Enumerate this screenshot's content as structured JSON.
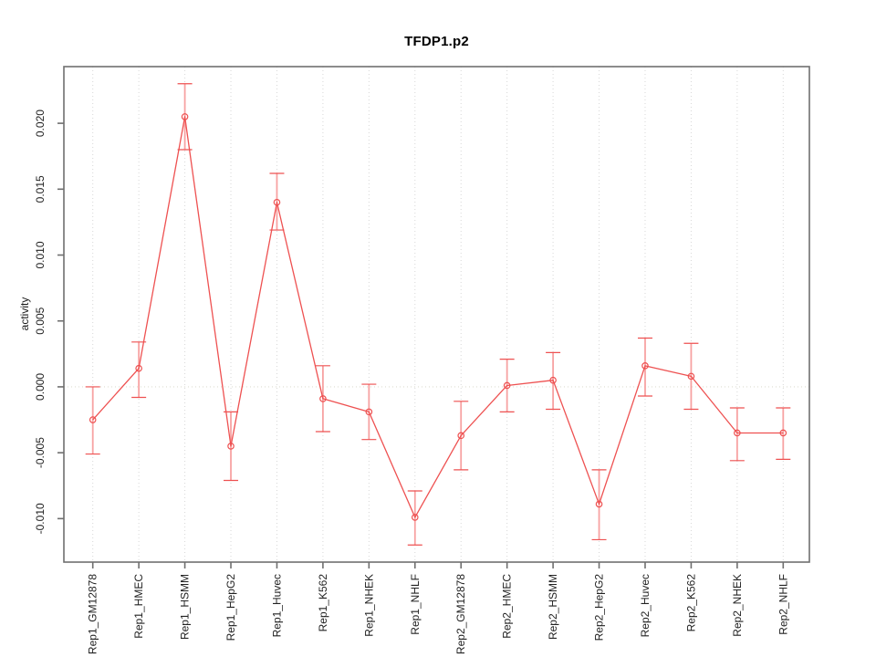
{
  "chart_data": {
    "type": "line",
    "title": "TFDP1.p2",
    "ylabel": "activity",
    "xlabel": "",
    "legend": null,
    "marker": "open-circle",
    "categories": [
      "Rep1_GM12878",
      "Rep1_HMEC",
      "Rep1_HSMM",
      "Rep1_HepG2",
      "Rep1_Huvec",
      "Rep1_K562",
      "Rep1_NHEK",
      "Rep1_NHLF",
      "Rep2_GM12878",
      "Rep2_HMEC",
      "Rep2_HSMM",
      "Rep2_HepG2",
      "Rep2_Huvec",
      "Rep2_K562",
      "Rep2_NHEK",
      "Rep2_NHLF"
    ],
    "values": [
      -0.0025,
      0.0014,
      0.0205,
      -0.0045,
      0.014,
      -0.0009,
      -0.0019,
      -0.0099,
      -0.0037,
      0.0001,
      0.0005,
      -0.0089,
      0.0016,
      0.0008,
      -0.0035,
      -0.0035
    ],
    "error_low": [
      -0.0051,
      -0.0008,
      0.018,
      -0.0071,
      0.0119,
      -0.0034,
      -0.004,
      -0.012,
      -0.0063,
      -0.0019,
      -0.0017,
      -0.0116,
      -0.0007,
      -0.0017,
      -0.0056,
      -0.0055
    ],
    "error_high": [
      0.0,
      0.0034,
      0.023,
      -0.0019,
      0.0162,
      0.0016,
      0.0002,
      -0.0079,
      -0.0011,
      0.0021,
      0.0026,
      -0.0063,
      0.0037,
      0.0033,
      -0.0016,
      -0.0016
    ],
    "yticks": [
      0.02,
      0.015,
      0.01,
      0.005,
      0.0,
      -0.005,
      -0.01
    ],
    "ytick_labels": [
      "0.020",
      "0.015",
      "0.010",
      "0.005",
      "0.000",
      "-0.005",
      "-0.010"
    ],
    "ylim": [
      -0.0133,
      0.0243
    ],
    "grid": {
      "vertical_dotted_per_category": true,
      "horizontal_dotted_at_zero": true
    },
    "colors": {
      "line": "#ee5151",
      "point": "#ee5151",
      "error_bar": "#f7a2a2",
      "error_cap": "#ee5151",
      "grid": "#d7d7d7",
      "zero_line": "#deddd0",
      "axis": "#6f6f6f",
      "text": "#222222"
    }
  }
}
